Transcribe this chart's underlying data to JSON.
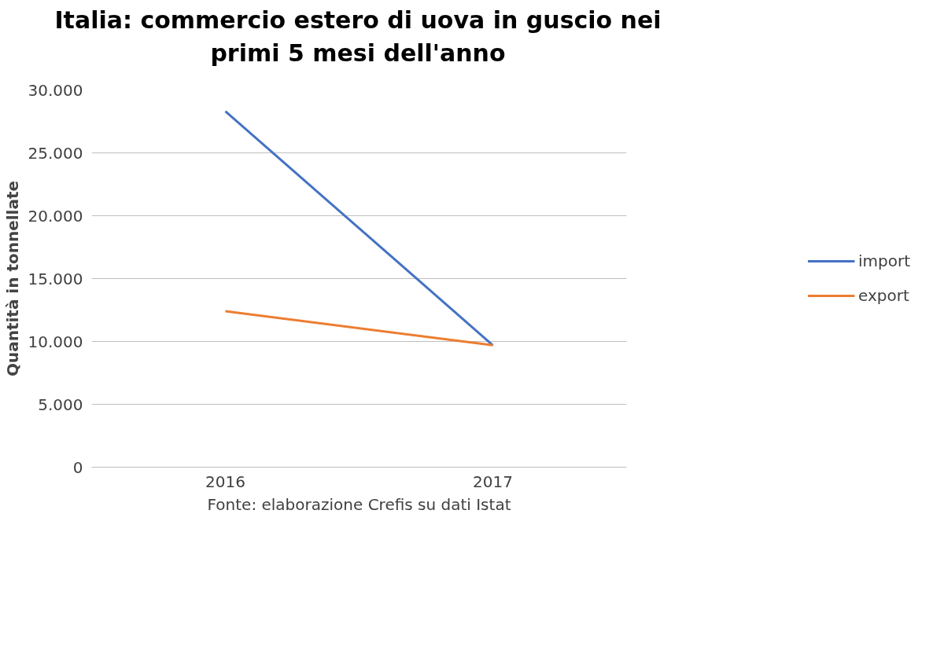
{
  "chart_data": {
    "type": "line",
    "title": "Italia: commercio estero di uova in guscio nei\nprimi 5 mesi dell'anno",
    "ylabel": "Quantità in tonnellate",
    "categories": [
      "2016",
      "2017"
    ],
    "series": [
      {
        "name": "import",
        "color": "#4472c4",
        "values": [
          28300,
          9700
        ]
      },
      {
        "name": "export",
        "color": "#ed7d31",
        "values": [
          12400,
          9700
        ]
      }
    ],
    "ylim": [
      0,
      30000
    ],
    "yticks": [
      {
        "value": 0,
        "label": "0"
      },
      {
        "value": 5000,
        "label": "5.000"
      },
      {
        "value": 10000,
        "label": "10.000"
      },
      {
        "value": 15000,
        "label": "15.000"
      },
      {
        "value": 20000,
        "label": "20.000"
      },
      {
        "value": 25000,
        "label": "25.000"
      },
      {
        "value": 30000,
        "label": "30.000"
      }
    ],
    "grid": "y",
    "legend": "right",
    "marker": "none",
    "line_style": "solid",
    "annotations": [
      "Fonte: elaborazione Crefis su dati Istat"
    ]
  }
}
